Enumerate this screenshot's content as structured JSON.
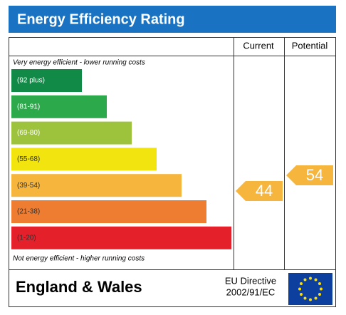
{
  "header": {
    "title": "Energy Efficiency Rating"
  },
  "columns": {
    "current": "Current",
    "potential": "Potential"
  },
  "top_note": "Very energy efficient - lower running costs",
  "bottom_note": "Not energy efficient - higher running costs",
  "bands": [
    {
      "label": "(92 plus)",
      "color": "#128a47"
    },
    {
      "label": "(81-91)",
      "color": "#2ca94b"
    },
    {
      "label": "(69-80)",
      "color": "#9dc33c"
    },
    {
      "label": "(55-68)",
      "color": "#f1e40f"
    },
    {
      "label": "(39-54)",
      "color": "#f6b53c"
    },
    {
      "label": "(21-38)",
      "color": "#ef7d31"
    },
    {
      "label": "(1-20)",
      "color": "#e4202b"
    }
  ],
  "current": {
    "value": "44",
    "color": "#f6b53c"
  },
  "potential": {
    "value": "54",
    "color": "#f6b53c"
  },
  "footer": {
    "region": "England & Wales",
    "directive_line1": "EU Directive",
    "directive_line2": "2002/91/EC"
  }
}
